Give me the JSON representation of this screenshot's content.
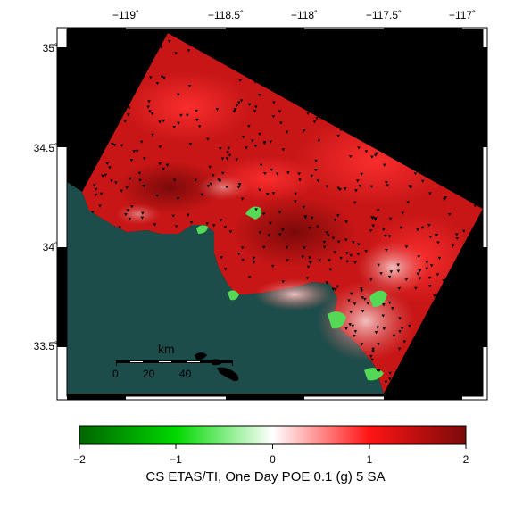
{
  "map": {
    "lon_ticks": [
      "−119˚",
      "−118.5˚",
      "−118˚",
      "−117.5˚",
      "−117˚"
    ],
    "lat_ticks": [
      "35˚",
      "34.5˚",
      "34˚",
      "33.5˚"
    ],
    "scalebar": {
      "unit": "km",
      "labels": [
        "0",
        "20",
        "40"
      ]
    },
    "colors": {
      "ocean": "#1c4d4a",
      "outside": "#000000",
      "hazard_base": "#c81616",
      "hazard_dark": "#8a0a0a",
      "decrease": "#55d855",
      "stations": "#000000"
    }
  },
  "colorbar": {
    "tick_labels": [
      "−2",
      "−1",
      "0",
      "1",
      "2"
    ],
    "range": [
      -2,
      2
    ],
    "colormap": [
      "#006400",
      "#00e000",
      "#ffffff",
      "#ff1010",
      "#7a0a0a"
    ],
    "title": "CS ETAS/TI, One Day POE 0.1 (g) 5 SA"
  }
}
